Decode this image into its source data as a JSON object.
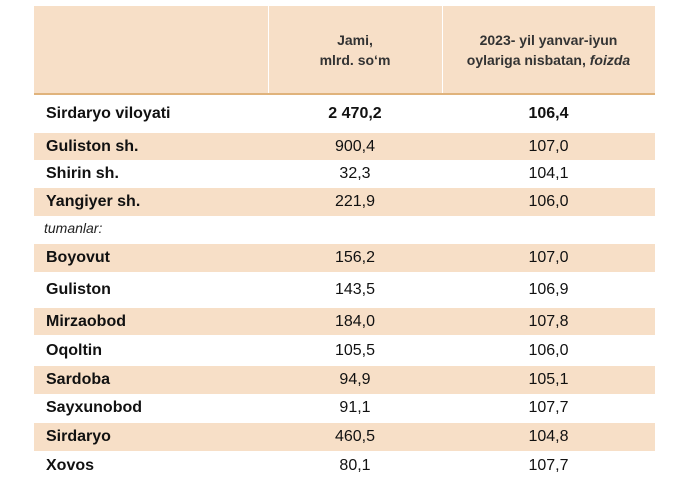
{
  "table": {
    "header": {
      "col1_line1": "Jami,",
      "col1_line2": "mlrd. so‘m",
      "col2_line1": "2023- yil yanvar-iyun",
      "col2_line2_plain": "oylariga nisbatan, ",
      "col2_line2_italic": "foizda"
    },
    "rows": [
      {
        "name": "Sirdaryo viloyati",
        "jami": "2 470,2",
        "foiz": "106,4"
      },
      {
        "name": "Guliston  sh.",
        "jami": "900,4",
        "foiz": "107,0"
      },
      {
        "name": "Shirin sh.",
        "jami": "32,3",
        "foiz": "104,1"
      },
      {
        "name": "Yangiyer sh.",
        "jami": "221,9",
        "foiz": "106,0"
      },
      {
        "name": "tumanlar:",
        "jami": "",
        "foiz": ""
      },
      {
        "name": "Boyovut",
        "jami": "156,2",
        "foiz": "107,0"
      },
      {
        "name": "Guliston",
        "jami": "143,5",
        "foiz": "106,9"
      },
      {
        "name": "Mirzaobod",
        "jami": "184,0",
        "foiz": "107,8"
      },
      {
        "name": "Oqoltin",
        "jami": "105,5",
        "foiz": "106,0"
      },
      {
        "name": "Sardoba",
        "jami": "94,9",
        "foiz": "105,1"
      },
      {
        "name": "Sayxunobod",
        "jami": "91,1",
        "foiz": "107,7"
      },
      {
        "name": "Sirdaryo",
        "jami": "460,5",
        "foiz": "104,8"
      },
      {
        "name": "Xovos",
        "jami": "80,1",
        "foiz": "107,7"
      }
    ]
  }
}
